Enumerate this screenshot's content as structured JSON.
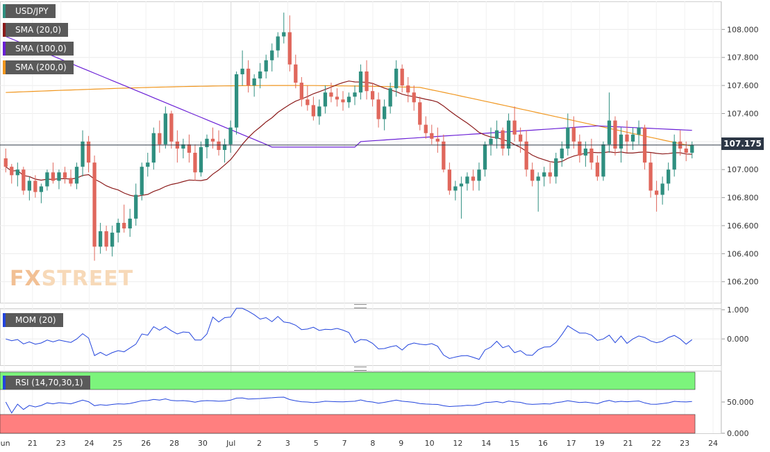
{
  "chart_data": [
    {
      "type": "candlestick",
      "panel": "price",
      "symbol": "USD/JPY",
      "last_price": "107.175",
      "y_ticks": [
        "108.000",
        "107.800",
        "107.600",
        "107.400",
        "107.200",
        "107.000",
        "106.800",
        "106.600",
        "106.400",
        "106.200"
      ],
      "ylim": [
        106.05,
        108.2
      ],
      "x_ticks": [
        "Jun",
        "21",
        "23",
        "24",
        "25",
        "26",
        "28",
        "30",
        "Jul",
        "2",
        "3",
        "5",
        "7",
        "8",
        "9",
        "10",
        "12",
        "14",
        "15",
        "16",
        "17",
        "19",
        "21",
        "22",
        "23",
        "24"
      ],
      "indicators": [
        {
          "name": "SMA (20,0)",
          "color": "#8b1a1a"
        },
        {
          "name": "SMA (100,0)",
          "color": "#6a1fd6"
        },
        {
          "name": "SMA (200,0)",
          "color": "#f0961e"
        }
      ],
      "candles": [
        [
          107.08,
          107.15,
          106.98,
          107.02
        ],
        [
          107.02,
          107.04,
          106.9,
          106.96
        ],
        [
          106.96,
          107.05,
          106.88,
          107.0
        ],
        [
          107.0,
          107.02,
          106.82,
          106.85
        ],
        [
          106.85,
          106.95,
          106.78,
          106.92
        ],
        [
          106.92,
          106.96,
          106.8,
          106.84
        ],
        [
          106.84,
          106.9,
          106.76,
          106.88
        ],
        [
          106.88,
          107.0,
          106.85,
          106.98
        ],
        [
          106.98,
          107.05,
          106.9,
          106.92
        ],
        [
          106.92,
          107.0,
          106.86,
          106.98
        ],
        [
          106.98,
          107.02,
          106.9,
          106.94
        ],
        [
          106.94,
          107.0,
          106.88,
          106.9
        ],
        [
          106.9,
          107.05,
          106.86,
          107.02
        ],
        [
          107.02,
          107.28,
          106.95,
          107.2
        ],
        [
          107.2,
          107.24,
          106.98,
          107.05
        ],
        [
          107.05,
          107.1,
          106.35,
          106.45
        ],
        [
          106.45,
          106.62,
          106.4,
          106.56
        ],
        [
          106.56,
          106.6,
          106.42,
          106.45
        ],
        [
          106.45,
          106.6,
          106.38,
          106.55
        ],
        [
          106.55,
          106.65,
          106.48,
          106.62
        ],
        [
          106.62,
          106.75,
          106.55,
          106.58
        ],
        [
          106.58,
          106.72,
          106.52,
          106.65
        ],
        [
          106.65,
          106.9,
          106.6,
          106.82
        ],
        [
          106.82,
          107.05,
          106.78,
          107.02
        ],
        [
          107.02,
          107.12,
          106.95,
          107.05
        ],
        [
          107.05,
          107.3,
          107.0,
          107.26
        ],
        [
          107.26,
          107.35,
          107.12,
          107.18
        ],
        [
          107.18,
          107.45,
          107.15,
          107.4
        ],
        [
          107.4,
          107.42,
          107.15,
          107.2
        ],
        [
          107.2,
          107.28,
          107.05,
          107.15
        ],
        [
          107.15,
          107.22,
          107.08,
          107.18
        ],
        [
          107.18,
          107.25,
          107.05,
          107.12
        ],
        [
          107.12,
          107.18,
          106.92,
          106.98
        ],
        [
          106.98,
          107.2,
          106.95,
          107.16
        ],
        [
          107.16,
          107.25,
          107.08,
          107.22
        ],
        [
          107.22,
          107.3,
          107.15,
          107.2
        ],
        [
          107.2,
          107.28,
          107.1,
          107.14
        ],
        [
          107.14,
          107.22,
          107.05,
          107.18
        ],
        [
          107.18,
          107.35,
          107.12,
          107.3
        ],
        [
          107.3,
          107.7,
          107.25,
          107.68
        ],
        [
          107.68,
          107.85,
          107.6,
          107.72
        ],
        [
          107.72,
          107.78,
          107.55,
          107.6
        ],
        [
          107.6,
          107.68,
          107.52,
          107.65
        ],
        [
          107.65,
          107.76,
          107.58,
          107.7
        ],
        [
          107.7,
          107.82,
          107.65,
          107.78
        ],
        [
          107.78,
          107.9,
          107.7,
          107.85
        ],
        [
          107.85,
          107.98,
          107.8,
          107.95
        ],
        [
          107.95,
          108.12,
          107.9,
          107.98
        ],
        [
          107.98,
          108.1,
          107.7,
          107.75
        ],
        [
          107.75,
          107.82,
          107.58,
          107.62
        ],
        [
          107.62,
          107.66,
          107.45,
          107.5
        ],
        [
          107.5,
          107.6,
          107.42,
          107.46
        ],
        [
          107.46,
          107.52,
          107.35,
          107.38
        ],
        [
          107.38,
          107.5,
          107.32,
          107.45
        ],
        [
          107.45,
          107.6,
          107.4,
          107.55
        ],
        [
          107.55,
          107.62,
          107.48,
          107.52
        ],
        [
          107.52,
          107.58,
          107.45,
          107.5
        ],
        [
          107.5,
          107.56,
          107.42,
          107.48
        ],
        [
          107.48,
          107.55,
          107.44,
          107.52
        ],
        [
          107.52,
          107.6,
          107.46,
          107.55
        ],
        [
          107.55,
          107.75,
          107.5,
          107.7
        ],
        [
          107.7,
          107.78,
          107.5,
          107.56
        ],
        [
          107.56,
          107.62,
          107.45,
          107.5
        ],
        [
          107.5,
          107.55,
          107.3,
          107.36
        ],
        [
          107.36,
          107.5,
          107.28,
          107.45
        ],
        [
          107.45,
          107.62,
          107.4,
          107.58
        ],
        [
          107.58,
          107.78,
          107.52,
          107.72
        ],
        [
          107.72,
          107.75,
          107.55,
          107.6
        ],
        [
          107.6,
          107.66,
          107.48,
          107.55
        ],
        [
          107.55,
          107.6,
          107.42,
          107.48
        ],
        [
          107.48,
          107.52,
          107.28,
          107.32
        ],
        [
          107.32,
          107.38,
          107.22,
          107.26
        ],
        [
          107.26,
          107.32,
          107.18,
          107.22
        ],
        [
          107.22,
          107.3,
          107.12,
          107.2
        ],
        [
          107.2,
          107.25,
          106.98,
          107.0
        ],
        [
          107.0,
          107.05,
          106.82,
          106.85
        ],
        [
          106.85,
          106.92,
          106.78,
          106.88
        ],
        [
          106.88,
          106.95,
          106.65,
          106.9
        ],
        [
          106.9,
          106.98,
          106.85,
          106.95
        ],
        [
          106.95,
          107.0,
          106.85,
          106.92
        ],
        [
          106.92,
          107.05,
          106.85,
          107.0
        ],
        [
          107.0,
          107.2,
          106.95,
          107.18
        ],
        [
          107.18,
          107.3,
          107.1,
          107.22
        ],
        [
          107.22,
          107.35,
          107.15,
          107.28
        ],
        [
          107.28,
          107.3,
          107.1,
          107.15
        ],
        [
          107.15,
          107.4,
          107.1,
          107.35
        ],
        [
          107.35,
          107.45,
          107.2,
          107.25
        ],
        [
          107.25,
          107.3,
          107.12,
          107.2
        ],
        [
          107.2,
          107.28,
          106.95,
          107.0
        ],
        [
          107.0,
          107.05,
          106.88,
          106.92
        ],
        [
          106.92,
          106.98,
          106.7,
          106.95
        ],
        [
          106.95,
          107.02,
          106.88,
          106.98
        ],
        [
          106.98,
          107.05,
          106.9,
          106.95
        ],
        [
          106.95,
          107.12,
          106.9,
          107.08
        ],
        [
          107.08,
          107.2,
          107.02,
          107.15
        ],
        [
          107.15,
          107.4,
          107.1,
          107.3
        ],
        [
          107.3,
          107.38,
          107.15,
          107.2
        ],
        [
          107.2,
          107.25,
          107.05,
          107.1
        ],
        [
          107.1,
          107.2,
          107.02,
          107.15
        ],
        [
          107.15,
          107.22,
          107.0,
          107.05
        ],
        [
          107.05,
          107.1,
          106.92,
          106.95
        ],
        [
          106.95,
          107.2,
          106.92,
          107.18
        ],
        [
          107.18,
          107.55,
          107.12,
          107.35
        ],
        [
          107.35,
          107.38,
          107.1,
          107.15
        ],
        [
          107.15,
          107.3,
          107.05,
          107.25
        ],
        [
          107.25,
          107.35,
          107.12,
          107.2
        ],
        [
          107.2,
          107.3,
          107.14,
          107.25
        ],
        [
          107.25,
          107.35,
          107.18,
          107.3
        ],
        [
          107.3,
          107.32,
          107.0,
          107.05
        ],
        [
          107.05,
          107.12,
          106.8,
          106.85
        ],
        [
          106.85,
          106.92,
          106.7,
          106.82
        ],
        [
          106.82,
          106.95,
          106.75,
          106.9
        ],
        [
          106.9,
          107.05,
          106.85,
          107.0
        ],
        [
          107.0,
          107.25,
          106.95,
          107.2
        ],
        [
          107.2,
          107.28,
          107.1,
          107.15
        ],
        [
          107.15,
          107.2,
          107.06,
          107.12
        ],
        [
          107.12,
          107.2,
          107.08,
          107.175
        ]
      ]
    },
    {
      "type": "line",
      "panel": "momentum",
      "name": "MOM (20)",
      "y_ticks": [
        "1.000",
        "0.000"
      ],
      "ylim": [
        -0.9,
        1.05
      ]
    },
    {
      "type": "line",
      "panel": "rsi",
      "name": "RSI (14,70,30,1)",
      "y_ticks": [
        "50.000",
        "0.000"
      ],
      "ylim": [
        0,
        100
      ],
      "overbought": 70,
      "oversold": 30
    }
  ],
  "legend": {
    "symbol": "USD/JPY",
    "sma20": "SMA (20,0)",
    "sma100": "SMA (100,0)",
    "sma200": "SMA (200,0)",
    "mom": "MOM (20)",
    "rsi": "RSI (14,70,30,1)"
  },
  "price_label": "107.175",
  "watermark": {
    "fx": "FX",
    "street": "STREET"
  },
  "colors": {
    "up": "#2f8f80",
    "down": "#e0675c",
    "sma20": "#8b1a1a",
    "sma100": "#6a1fd6",
    "sma200": "#f0961e",
    "mom": "#2244dd",
    "rsi": "#2244dd",
    "overbought": "#7cf47c",
    "oversold": "#ff7f7f"
  }
}
